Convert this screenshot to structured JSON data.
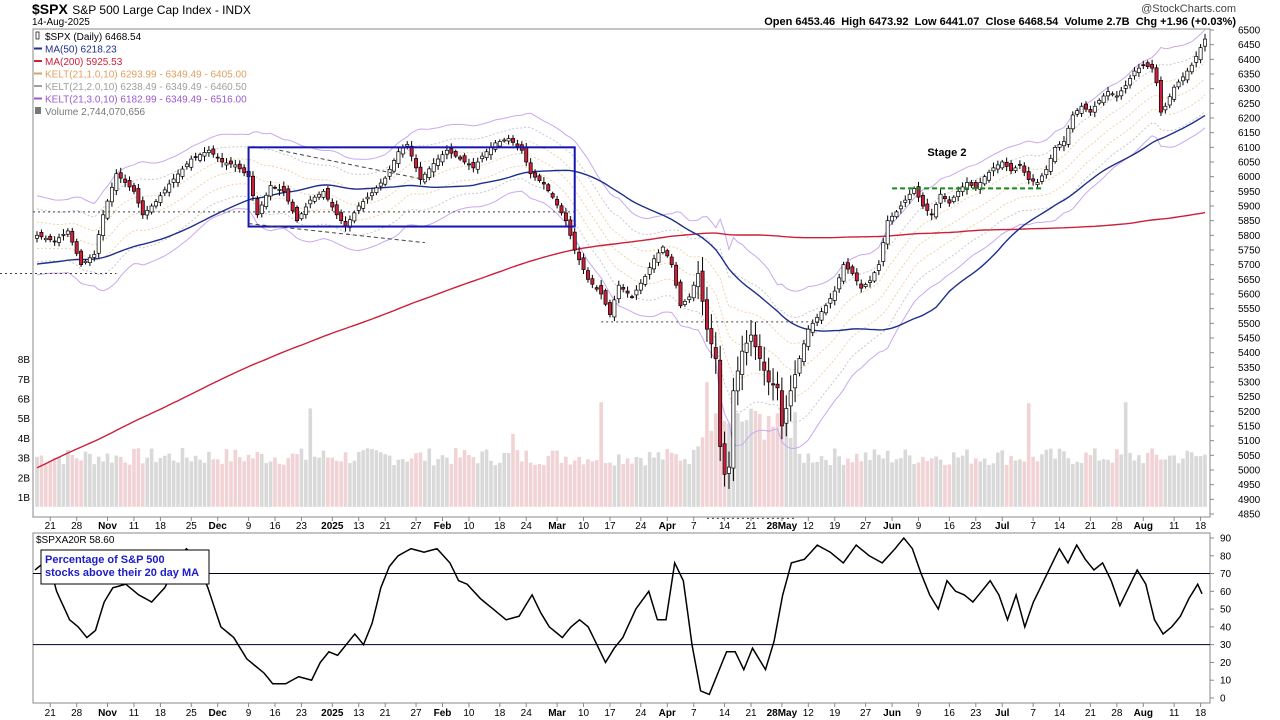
{
  "header": {
    "symbol": "$SPX",
    "name": "S&P 500 Large Cap Index",
    "exchange": "INDX",
    "date": "14-Aug-2025",
    "watermark": "@StockCharts.com",
    "ohlc": "Open 6453.46  High 6473.92  Low 6441.07  Close 6468.54  Volume 2.7B  Chg +1.96 (+0.03%)"
  },
  "legend": [
    {
      "text": "$SPX (Daily) 6468.54",
      "color": "#000000",
      "marker": "candle"
    },
    {
      "text": "MA(50) 6218.23",
      "color": "#1f2f8c",
      "marker": "line"
    },
    {
      "text": "MA(200) 5925.53",
      "color": "#cc1f3a",
      "marker": "line"
    },
    {
      "text": "KELT(21,1.0,10) 6293.99 - 6349.49 - 6405.00",
      "color": "#e0a060",
      "marker": "line"
    },
    {
      "text": "KELT(21,2.0,10) 6238.49 - 6349.49 - 6460.50",
      "color": "#a0a0a0",
      "marker": "line"
    },
    {
      "text": "KELT(21,3.0,10) 6182.99 - 6349.49 - 6516.00",
      "color": "#9b59d0",
      "marker": "line"
    },
    {
      "text": "Volume 2,744,070,656",
      "color": "#777777",
      "marker": "bar"
    }
  ],
  "annotations": {
    "stage2": "Stage 2",
    "lower_box": "Percentage of S&P 500\nstocks above their 20 day MA"
  },
  "lower_panel": {
    "legend": "$SPXA20R 58.60"
  },
  "chart_data": [
    {
      "type": "candlestick",
      "title": "$SPX S&P 500 Large Cap Index INDX",
      "x_tick_labels": [
        "21",
        "28",
        "Nov",
        "11",
        "18",
        "25",
        "Dec",
        "9",
        "16",
        "23",
        "2025",
        "13",
        "21",
        "27",
        "Feb",
        "10",
        "18",
        "24",
        "Mar",
        "10",
        "17",
        "24",
        "Apr",
        "7",
        "14",
        "21",
        "28May",
        "12",
        "19",
        "27",
        "Jun",
        "9",
        "16",
        "23",
        "Jul",
        "7",
        "14",
        "21",
        "28",
        "Aug",
        "11",
        "18"
      ],
      "y_tick_labels": [
        "6500",
        "6450",
        "6400",
        "6350",
        "6300",
        "6250",
        "6200",
        "6150",
        "6100",
        "6050",
        "6000",
        "5950",
        "5900",
        "5850",
        "5800",
        "5750",
        "5700",
        "5650",
        "5600",
        "5550",
        "5500",
        "5450",
        "5400",
        "5350",
        "5300",
        "5250",
        "5200",
        "5150",
        "5100",
        "5050",
        "5000",
        "4950",
        "4900",
        "4850"
      ],
      "ylim": [
        4820,
        6520
      ],
      "volume_tick_labels": [
        "8B",
        "7B",
        "6B",
        "5B",
        "4B",
        "3B",
        "2B",
        "1B"
      ],
      "close_keypoints": [
        [
          0,
          5800
        ],
        [
          4,
          5780
        ],
        [
          7,
          5815
        ],
        [
          10,
          5700
        ],
        [
          13,
          5735
        ],
        [
          15,
          5870
        ],
        [
          18,
          6010
        ],
        [
          22,
          5950
        ],
        [
          24,
          5870
        ],
        [
          27,
          5915
        ],
        [
          30,
          5975
        ],
        [
          35,
          6060
        ],
        [
          39,
          6090
        ],
        [
          42,
          6050
        ],
        [
          45,
          6040
        ],
        [
          48,
          6000
        ],
        [
          50,
          5870
        ],
        [
          53,
          5970
        ],
        [
          56,
          5950
        ],
        [
          59,
          5850
        ],
        [
          62,
          5920
        ],
        [
          65,
          5950
        ],
        [
          68,
          5870
        ],
        [
          70,
          5830
        ],
        [
          73,
          5900
        ],
        [
          76,
          5945
        ],
        [
          79,
          5995
        ],
        [
          82,
          6085
        ],
        [
          84,
          6110
        ],
        [
          87,
          5990
        ],
        [
          90,
          6045
        ],
        [
          93,
          6090
        ],
        [
          96,
          6060
        ],
        [
          99,
          6030
        ],
        [
          101,
          6070
        ],
        [
          104,
          6115
        ],
        [
          107,
          6130
        ],
        [
          110,
          6090
        ],
        [
          112,
          6010
        ],
        [
          115,
          5975
        ],
        [
          117,
          5930
        ],
        [
          120,
          5850
        ],
        [
          122,
          5750
        ],
        [
          125,
          5650
        ],
        [
          128,
          5600
        ],
        [
          130,
          5530
        ],
        [
          132,
          5630
        ],
        [
          135,
          5590
        ],
        [
          138,
          5660
        ],
        [
          140,
          5720
        ],
        [
          142,
          5760
        ],
        [
          144,
          5700
        ],
        [
          146,
          5560
        ],
        [
          148,
          5590
        ],
        [
          150,
          5670
        ],
        [
          152,
          5480
        ],
        [
          154,
          5380
        ],
        [
          155,
          5080
        ],
        [
          156,
          4985
        ],
        [
          157,
          5010
        ],
        [
          158,
          5270
        ],
        [
          160,
          5405
        ],
        [
          162,
          5460
        ],
        [
          164,
          5380
        ],
        [
          166,
          5300
        ],
        [
          168,
          5280
        ],
        [
          169,
          5150
        ],
        [
          171,
          5270
        ],
        [
          173,
          5380
        ],
        [
          175,
          5480
        ],
        [
          177,
          5520
        ],
        [
          179,
          5560
        ],
        [
          181,
          5610
        ],
        [
          183,
          5700
        ],
        [
          185,
          5670
        ],
        [
          187,
          5620
        ],
        [
          189,
          5645
        ],
        [
          191,
          5700
        ],
        [
          193,
          5850
        ],
        [
          195,
          5880
        ],
        [
          197,
          5920
        ],
        [
          199,
          5960
        ],
        [
          201,
          5900
        ],
        [
          203,
          5870
        ],
        [
          205,
          5940
        ],
        [
          207,
          5910
        ],
        [
          209,
          5950
        ],
        [
          211,
          5980
        ],
        [
          213,
          5960
        ],
        [
          215,
          6000
        ],
        [
          217,
          6030
        ],
        [
          219,
          6050
        ],
        [
          221,
          6020
        ],
        [
          223,
          6040
        ],
        [
          225,
          5990
        ],
        [
          227,
          5980
        ],
        [
          229,
          6025
        ],
        [
          231,
          6100
        ],
        [
          233,
          6120
        ],
        [
          235,
          6210
        ],
        [
          237,
          6240
        ],
        [
          239,
          6220
        ],
        [
          241,
          6260
        ],
        [
          243,
          6290
        ],
        [
          245,
          6275
        ],
        [
          247,
          6310
        ],
        [
          249,
          6360
        ],
        [
          251,
          6380
        ],
        [
          253,
          6370
        ],
        [
          254,
          6320
        ],
        [
          255,
          6220
        ],
        [
          256,
          6240
        ],
        [
          258,
          6305
        ],
        [
          260,
          6340
        ],
        [
          262,
          6380
        ],
        [
          264,
          6440
        ],
        [
          265,
          6469
        ]
      ],
      "bar_count": 266,
      "overlays": {
        "MA50": 6218.23,
        "MA200": 5925.53,
        "KELT_1": [
          6293.99,
          6349.49,
          6405.0
        ],
        "KELT_2": [
          6238.49,
          6349.49,
          6460.5
        ],
        "KELT_3": [
          6182.99,
          6349.49,
          6516.0
        ]
      }
    },
    {
      "type": "line",
      "title": "$SPXA20R",
      "y_tick_labels": [
        "90",
        "80",
        "70",
        "60",
        "50",
        "40",
        "30",
        "20",
        "10",
        "0"
      ],
      "ylim": [
        0,
        92
      ],
      "reference_lines": [
        70,
        30
      ],
      "series": [
        {
          "name": "$SPXA20R",
          "last": 58.6,
          "keypoints": [
            [
              0,
              72
            ],
            [
              3,
              78
            ],
            [
              5,
              60
            ],
            [
              8,
              44
            ],
            [
              10,
              40
            ],
            [
              12,
              34
            ],
            [
              14,
              38
            ],
            [
              16,
              54
            ],
            [
              18,
              62
            ],
            [
              21,
              64
            ],
            [
              24,
              58
            ],
            [
              27,
              54
            ],
            [
              30,
              62
            ],
            [
              33,
              76
            ],
            [
              35,
              84
            ],
            [
              37,
              80
            ],
            [
              40,
              62
            ],
            [
              43,
              40
            ],
            [
              46,
              34
            ],
            [
              49,
              22
            ],
            [
              51,
              18
            ],
            [
              53,
              14
            ],
            [
              55,
              8
            ],
            [
              58,
              8
            ],
            [
              61,
              12
            ],
            [
              64,
              10
            ],
            [
              66,
              20
            ],
            [
              68,
              26
            ],
            [
              70,
              24
            ],
            [
              72,
              30
            ],
            [
              74,
              36
            ],
            [
              76,
              30
            ],
            [
              78,
              42
            ],
            [
              80,
              62
            ],
            [
              82,
              74
            ],
            [
              84,
              80
            ],
            [
              87,
              84
            ],
            [
              90,
              82
            ],
            [
              93,
              84
            ],
            [
              96,
              76
            ],
            [
              98,
              66
            ],
            [
              100,
              64
            ],
            [
              103,
              56
            ],
            [
              106,
              50
            ],
            [
              109,
              44
            ],
            [
              112,
              46
            ],
            [
              115,
              58
            ],
            [
              117,
              48
            ],
            [
              119,
              40
            ],
            [
              122,
              34
            ],
            [
              124,
              40
            ],
            [
              126,
              44
            ],
            [
              128,
              40
            ],
            [
              130,
              30
            ],
            [
              132,
              20
            ],
            [
              134,
              28
            ],
            [
              136,
              34
            ],
            [
              139,
              50
            ],
            [
              142,
              60
            ],
            [
              144,
              44
            ],
            [
              146,
              44
            ],
            [
              148,
              76
            ],
            [
              150,
              66
            ],
            [
              152,
              30
            ],
            [
              154,
              4
            ],
            [
              156,
              2
            ],
            [
              158,
              14
            ],
            [
              160,
              26
            ],
            [
              162,
              26
            ],
            [
              164,
              16
            ],
            [
              166,
              28
            ],
            [
              168,
              20
            ],
            [
              169,
              16
            ],
            [
              171,
              32
            ],
            [
              173,
              58
            ],
            [
              175,
              76
            ],
            [
              178,
              78
            ],
            [
              181,
              86
            ],
            [
              184,
              82
            ],
            [
              187,
              76
            ],
            [
              190,
              86
            ],
            [
              193,
              80
            ],
            [
              196,
              76
            ],
            [
              199,
              84
            ],
            [
              201,
              90
            ],
            [
              203,
              84
            ],
            [
              205,
              70
            ],
            [
              207,
              58
            ],
            [
              209,
              50
            ],
            [
              211,
              66
            ],
            [
              213,
              60
            ],
            [
              215,
              58
            ],
            [
              217,
              54
            ],
            [
              219,
              60
            ],
            [
              221,
              66
            ],
            [
              223,
              58
            ],
            [
              225,
              44
            ],
            [
              227,
              58
            ],
            [
              229,
              40
            ],
            [
              231,
              54
            ],
            [
              233,
              64
            ],
            [
              235,
              74
            ],
            [
              237,
              84
            ],
            [
              239,
              76
            ],
            [
              241,
              86
            ],
            [
              243,
              78
            ],
            [
              245,
              72
            ],
            [
              247,
              76
            ],
            [
              249,
              66
            ],
            [
              251,
              52
            ],
            [
              253,
              62
            ],
            [
              255,
              72
            ],
            [
              257,
              64
            ],
            [
              259,
              44
            ],
            [
              261,
              36
            ],
            [
              263,
              40
            ],
            [
              265,
              46
            ],
            [
              267,
              56
            ],
            [
              269,
              64
            ],
            [
              270,
              58.6
            ]
          ]
        }
      ]
    }
  ]
}
